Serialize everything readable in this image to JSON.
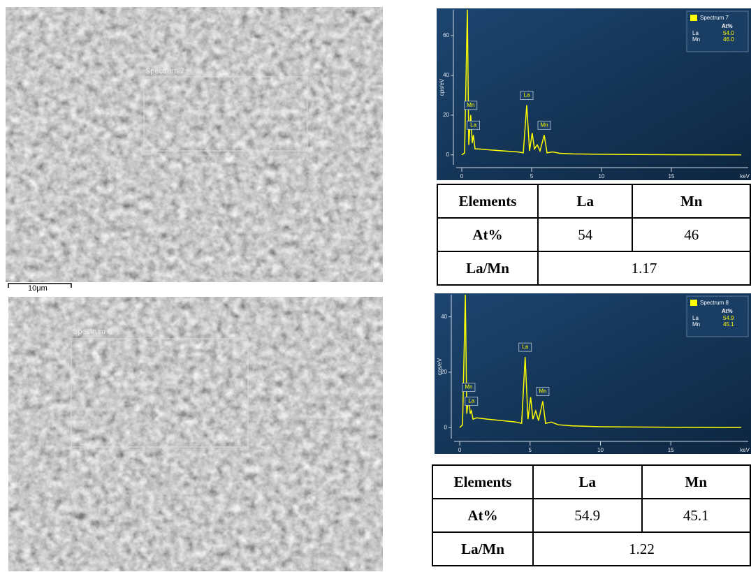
{
  "images": [
    {
      "label": "Spectrum 7",
      "scale_bar": "10μm"
    },
    {
      "label": "Spectrum 8"
    }
  ],
  "chart_data": [
    {
      "type": "line",
      "x_label": "keV",
      "y_label": "cps/eV",
      "xlim": [
        -0.4,
        20.5
      ],
      "ylim": [
        -5,
        73
      ],
      "xticks": [
        0,
        5,
        10,
        15
      ],
      "yticks": [
        0,
        20,
        40,
        60
      ],
      "x": [
        0,
        0.2,
        0.4,
        0.5,
        0.64,
        0.75,
        0.83,
        0.95,
        1.2,
        2,
        3,
        4,
        4.4,
        4.65,
        4.85,
        5.04,
        5.2,
        5.4,
        5.6,
        5.9,
        6.1,
        6.5,
        7,
        8,
        10,
        15,
        20
      ],
      "series": [
        {
          "name": "Spectrum 7",
          "color": "#ffff00",
          "values": [
            0,
            1,
            73,
            5,
            20,
            6,
            10,
            3,
            3,
            2.5,
            2,
            1.5,
            1,
            25,
            2,
            11,
            3,
            5,
            2,
            10,
            1,
            1.5,
            0.8,
            0.5,
            0.3,
            0.1,
            0
          ]
        }
      ],
      "legend_table": {
        "header": "At%",
        "rows": [
          [
            "La",
            "54.0"
          ],
          [
            "Mn",
            "46.0"
          ]
        ]
      },
      "peak_labels": [
        {
          "label": "Mn",
          "x": 0.64,
          "y": 20
        },
        {
          "label": "La",
          "x": 0.83,
          "y": 10
        },
        {
          "label": "La",
          "x": 4.65,
          "y": 25
        },
        {
          "label": "Mn",
          "x": 5.9,
          "y": 10
        }
      ]
    },
    {
      "type": "line",
      "x_label": "keV",
      "y_label": "cps/eV",
      "xlim": [
        -0.4,
        20.5
      ],
      "ylim": [
        -4,
        48
      ],
      "xticks": [
        0,
        5,
        10,
        15
      ],
      "yticks": [
        0,
        20,
        40
      ],
      "x": [
        0,
        0.2,
        0.4,
        0.5,
        0.64,
        0.75,
        0.83,
        0.95,
        1.2,
        2,
        3,
        4,
        4.4,
        4.65,
        4.85,
        5.04,
        5.2,
        5.4,
        5.6,
        5.9,
        6.1,
        6.5,
        7,
        8,
        10,
        15,
        20
      ],
      "series": [
        {
          "name": "Spectrum 8",
          "color": "#ffff00",
          "values": [
            0,
            1,
            48,
            5,
            11,
            5,
            6,
            3,
            3.5,
            3,
            2.5,
            2,
            1.5,
            25.5,
            3,
            11,
            3,
            6,
            2.5,
            9.5,
            1.5,
            2,
            1,
            0.6,
            0.3,
            0.1,
            0
          ]
        }
      ],
      "legend_table": {
        "header": "At%",
        "rows": [
          [
            "La",
            "54.9"
          ],
          [
            "Mn",
            "45.1"
          ]
        ]
      },
      "peak_labels": [
        {
          "label": "Mn",
          "x": 0.64,
          "y": 11
        },
        {
          "label": "La",
          "x": 0.83,
          "y": 6
        },
        {
          "label": "La",
          "x": 4.65,
          "y": 25.5
        },
        {
          "label": "Mn",
          "x": 5.9,
          "y": 9.5
        }
      ]
    }
  ],
  "tables": [
    {
      "header": [
        "Elements",
        "La",
        "Mn"
      ],
      "rows": [
        [
          "At%",
          "54",
          "46"
        ],
        [
          "La/Mn",
          "1.17"
        ]
      ]
    },
    {
      "header": [
        "Elements",
        "La",
        "Mn"
      ],
      "rows": [
        [
          "At%",
          "54.9",
          "45.1"
        ],
        [
          "La/Mn",
          "1.22"
        ]
      ]
    }
  ]
}
